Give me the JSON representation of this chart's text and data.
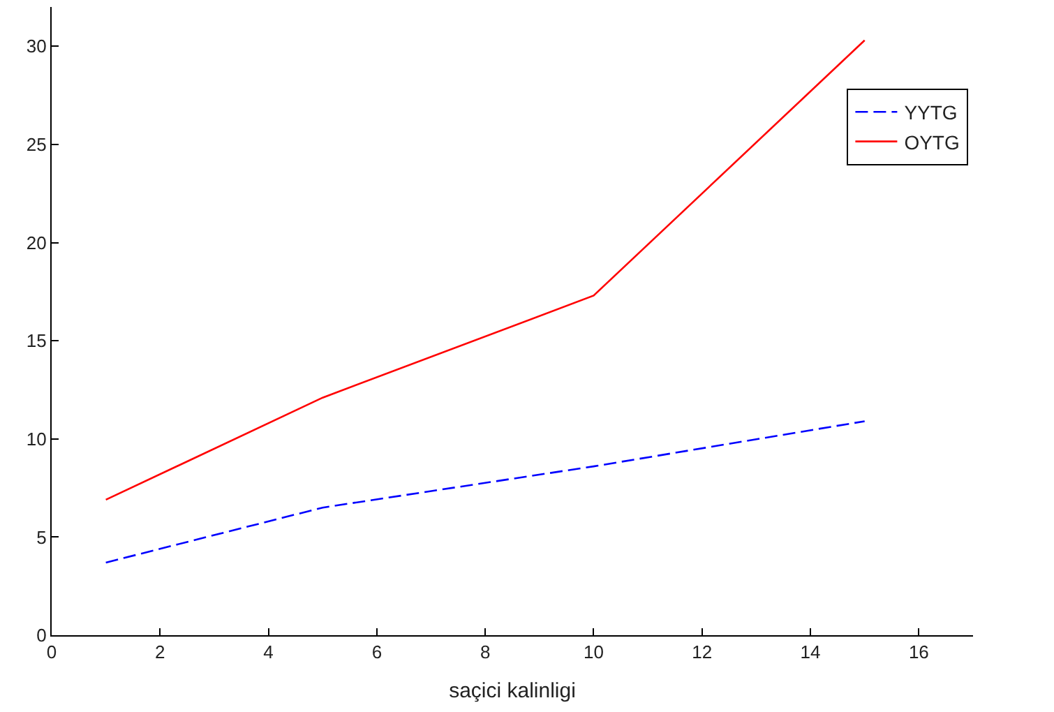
{
  "chart_data": {
    "type": "line",
    "xlabel": "saçici kalinligi",
    "x": [
      1,
      5,
      10,
      15
    ],
    "series": [
      {
        "name": "YYTG",
        "color": "#0000ff",
        "values": [
          3.7,
          6.5,
          8.6,
          10.9
        ],
        "line_style": "dashed"
      },
      {
        "name": "OYTG",
        "color": "#ff0000",
        "values": [
          6.9,
          12.1,
          17.3,
          30.3
        ],
        "line_style": "solid"
      }
    ],
    "xlim": [
      0,
      17
    ],
    "xticks": [
      0,
      2,
      4,
      6,
      8,
      10,
      12,
      14,
      16
    ],
    "ylim": [
      0,
      32
    ],
    "yticks": [
      0,
      5,
      10,
      15,
      20,
      25,
      30
    ],
    "legend": "top right",
    "marker": "none"
  }
}
